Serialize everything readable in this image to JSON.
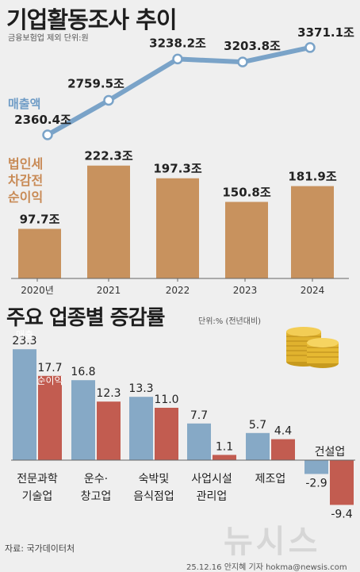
{
  "header": {
    "title": "기업활동조사 추이",
    "note": "금융보험업 제외 단위:원",
    "revenue_label": "매출액",
    "net_profit_label": [
      "법인세",
      "차감전",
      "순이익"
    ]
  },
  "section2": {
    "title": "주요 업종별 증감률",
    "unit": "단위:% (전년대비)"
  },
  "footer": {
    "source": "자료: 국가데이터처",
    "byline": "25.12.16 안지혜 기자 hokma@newsis.com",
    "watermark": "뉴시스"
  },
  "colors": {
    "revenue": "#7aa3c8",
    "net_profit_bar": "#c8925e",
    "industry_revenue": "#86a9c6",
    "industry_profit": "#c25c50",
    "background": "#efefef",
    "axis": "#666666"
  },
  "chart_data": [
    {
      "type": "bar",
      "title": "기업활동조사 추이",
      "categories": [
        "2020년",
        "2021",
        "2022",
        "2023",
        "2024"
      ],
      "series": [
        {
          "name": "매출액",
          "type": "line",
          "values": [
            2360.4,
            2759.5,
            3238.2,
            3203.8,
            3371.1
          ],
          "labels": [
            "2360.4조",
            "2759.5조",
            "3238.2조",
            "3203.8조",
            "3371.1조"
          ]
        },
        {
          "name": "법인세 차감전 순이익",
          "type": "bar",
          "values": [
            97.7,
            222.3,
            197.3,
            150.8,
            181.9
          ],
          "labels": [
            "97.7조",
            "222.3조",
            "197.3조",
            "150.8조",
            "181.9조"
          ]
        }
      ]
    },
    {
      "type": "bar",
      "title": "주요 업종별 증감률",
      "categories": [
        [
          "전문과학",
          "기술업"
        ],
        [
          "운수·",
          "창고업"
        ],
        [
          "숙박및",
          "음식점업"
        ],
        [
          "사업시설",
          "관리업"
        ],
        [
          "제조업"
        ],
        [
          "건설업"
        ]
      ],
      "series": [
        {
          "name": "매출",
          "values": [
            23.3,
            16.8,
            13.3,
            7.7,
            5.7,
            -2.9
          ],
          "labels": [
            "23.3",
            "16.8",
            "13.3",
            "7.7",
            "5.7",
            "-2.9"
          ]
        },
        {
          "name": "순이익",
          "values": [
            17.7,
            12.3,
            11.0,
            1.1,
            4.4,
            -9.4
          ],
          "labels": [
            "17.7",
            "12.3",
            "11.0",
            "1.1",
            "4.4",
            "-9.4"
          ]
        }
      ]
    }
  ]
}
